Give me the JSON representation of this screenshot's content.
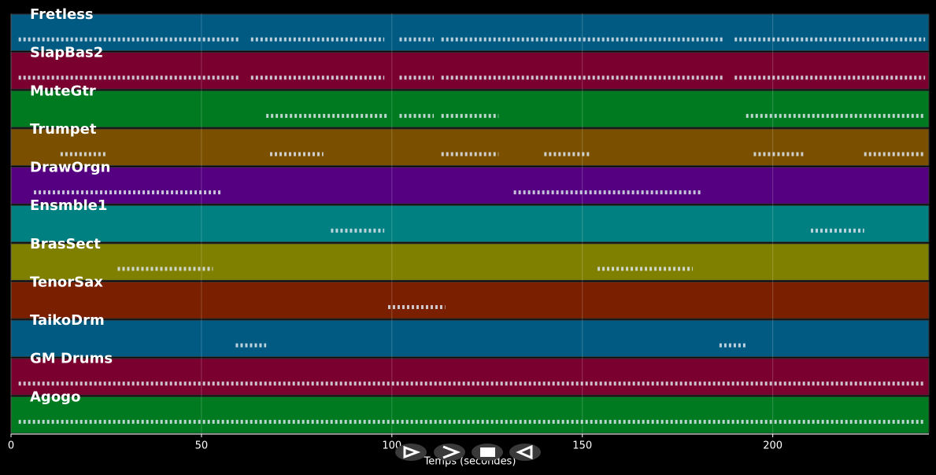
{
  "chart_data": {
    "type": "timeline",
    "x_label": "Temps (secondes)",
    "xlim": [
      0,
      241
    ],
    "xticks": [
      0,
      50,
      100,
      150,
      200
    ],
    "grid": true,
    "note_color": "#dde6ee",
    "tracks": [
      {
        "name": "Fretless",
        "color": "#005a82",
        "notes": [
          [
            2,
            60
          ],
          [
            63,
            98
          ],
          [
            102,
            111
          ],
          [
            113,
            187
          ],
          [
            190,
            240
          ]
        ]
      },
      {
        "name": "SlapBas2",
        "color": "#7a0030",
        "notes": [
          [
            2,
            60
          ],
          [
            63,
            98
          ],
          [
            102,
            111
          ],
          [
            113,
            187
          ],
          [
            190,
            240
          ]
        ]
      },
      {
        "name": "MuteGtr",
        "color": "#007a20",
        "notes": [
          [
            67,
            99
          ],
          [
            102,
            111
          ],
          [
            113,
            128
          ],
          [
            193,
            240
          ]
        ]
      },
      {
        "name": "Trumpet",
        "color": "#7a5000",
        "notes": [
          [
            13,
            25
          ],
          [
            68,
            82
          ],
          [
            113,
            128
          ],
          [
            140,
            152
          ],
          [
            195,
            208
          ],
          [
            224,
            240
          ]
        ]
      },
      {
        "name": "DrawOrgn",
        "color": "#550080",
        "notes": [
          [
            6,
            55
          ],
          [
            132,
            181
          ]
        ]
      },
      {
        "name": "Ensmble1",
        "color": "#008080",
        "notes": [
          [
            84,
            98
          ],
          [
            210,
            224
          ]
        ]
      },
      {
        "name": "BrasSect",
        "color": "#808000",
        "notes": [
          [
            28,
            53
          ],
          [
            154,
            179
          ]
        ]
      },
      {
        "name": "TenorSax",
        "color": "#7a2000",
        "notes": [
          [
            99,
            114
          ]
        ]
      },
      {
        "name": "TaikoDrm",
        "color": "#005a82",
        "notes": [
          [
            59,
            67
          ],
          [
            186,
            193
          ]
        ]
      },
      {
        "name": "GM Drums",
        "color": "#7a0030",
        "notes": [
          [
            2,
            240
          ]
        ]
      },
      {
        "name": "Agogo",
        "color": "#007a20",
        "notes": [
          [
            2,
            240
          ]
        ]
      }
    ]
  }
}
